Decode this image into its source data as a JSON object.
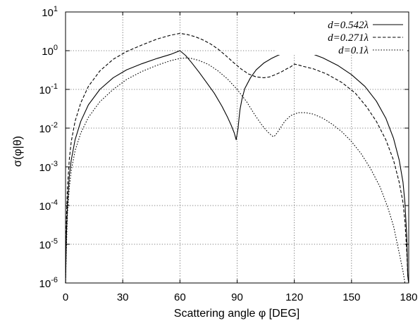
{
  "chart_data": {
    "type": "line",
    "xlabel": "Scattering angle φ [DEG]",
    "ylabel": "σ(φ|θ)",
    "x_ticks": [
      "0",
      "30",
      "60",
      "90",
      "120",
      "150",
      "180"
    ],
    "y_ticks": [
      {
        "base": "10",
        "exp": "-6"
      },
      {
        "base": "10",
        "exp": "-5"
      },
      {
        "base": "10",
        "exp": "-4"
      },
      {
        "base": "10",
        "exp": "-3"
      },
      {
        "base": "10",
        "exp": "-2"
      },
      {
        "base": "10",
        "exp": "-1"
      },
      {
        "base": "10",
        "exp": "0"
      },
      {
        "base": "10",
        "exp": "1"
      }
    ],
    "xlim": [
      0,
      180
    ],
    "ylim": [
      1e-06,
      10
    ],
    "yscale": "log",
    "grid": true,
    "legend_position": "top-right",
    "series": [
      {
        "name": "d=0.542λ",
        "style": "solid",
        "x": [
          0,
          0.5,
          1,
          2,
          3,
          5,
          8,
          12,
          18,
          25,
          32,
          40,
          48,
          55,
          60,
          63,
          66,
          70,
          74,
          78,
          82,
          85,
          87,
          88.5,
          89.5,
          90.5,
          91,
          91.5,
          92.5,
          94,
          97,
          100,
          104,
          108,
          112,
          116,
          119,
          120,
          123,
          128,
          135,
          143,
          150,
          157,
          163,
          168,
          172,
          175,
          177,
          178,
          179,
          179.5,
          180
        ],
        "y": [
          1e-06,
          2e-05,
          0.0001,
          0.0006,
          0.0015,
          0.005,
          0.015,
          0.04,
          0.1,
          0.2,
          0.32,
          0.46,
          0.63,
          0.8,
          1.0,
          0.75,
          0.5,
          0.28,
          0.15,
          0.08,
          0.037,
          0.019,
          0.0115,
          0.0075,
          0.005,
          0.01,
          0.018,
          0.03,
          0.055,
          0.105,
          0.2,
          0.32,
          0.48,
          0.63,
          0.78,
          0.94,
          1.05,
          1.15,
          1.05,
          0.88,
          0.65,
          0.41,
          0.24,
          0.12,
          0.05,
          0.018,
          0.0055,
          0.0015,
          0.0004,
          0.00012,
          1.5e-05,
          1.5e-06,
          1e-06
        ]
      },
      {
        "name": "d=0.271λ",
        "style": "dashed",
        "x": [
          0,
          0.5,
          1,
          2,
          3,
          5,
          8,
          12,
          18,
          25,
          32,
          40,
          48,
          55,
          60,
          64,
          68,
          72,
          76,
          80,
          84,
          88,
          92,
          96,
          100,
          104,
          107,
          110,
          113,
          116,
          118,
          120,
          122,
          125,
          130,
          137,
          145,
          152,
          158,
          163,
          168,
          172,
          175,
          177,
          178,
          179,
          179.5,
          180
        ],
        "y": [
          1e-06,
          5e-05,
          0.0003,
          0.0016,
          0.0045,
          0.015,
          0.045,
          0.12,
          0.3,
          0.6,
          0.95,
          1.4,
          2.0,
          2.5,
          2.8,
          2.6,
          2.3,
          1.9,
          1.5,
          1.1,
          0.75,
          0.5,
          0.34,
          0.25,
          0.21,
          0.2,
          0.21,
          0.24,
          0.28,
          0.34,
          0.38,
          0.45,
          0.43,
          0.39,
          0.34,
          0.25,
          0.15,
          0.08,
          0.035,
          0.015,
          0.005,
          0.0015,
          0.0004,
          0.00012,
          4e-05,
          6e-06,
          1.5e-06,
          1e-06
        ]
      },
      {
        "name": "d=0.1λ",
        "style": "dotted",
        "x": [
          0,
          0.5,
          1,
          2,
          3,
          5,
          8,
          12,
          18,
          25,
          32,
          40,
          48,
          55,
          60,
          63,
          66,
          70,
          75,
          80,
          85,
          90,
          95,
          99,
          103,
          106,
          108,
          109,
          110,
          112,
          115,
          118,
          122,
          126,
          130,
          135,
          140,
          145,
          150,
          155,
          160,
          165,
          169,
          172,
          175,
          177,
          178,
          179,
          179.5,
          180
        ],
        "y": [
          1e-06,
          1e-05,
          6e-05,
          0.0003,
          0.0008,
          0.0026,
          0.0075,
          0.019,
          0.048,
          0.1,
          0.18,
          0.29,
          0.42,
          0.55,
          0.63,
          0.65,
          0.63,
          0.56,
          0.44,
          0.3,
          0.185,
          0.1,
          0.048,
          0.023,
          0.012,
          0.008,
          0.0065,
          0.006,
          0.0065,
          0.009,
          0.015,
          0.021,
          0.025,
          0.025,
          0.023,
          0.018,
          0.0125,
          0.008,
          0.0045,
          0.0022,
          0.0009,
          0.0003,
          9e-05,
          3e-05,
          6e-06,
          2e-06,
          1e-06,
          1e-06,
          1e-06,
          1e-06
        ]
      }
    ]
  }
}
